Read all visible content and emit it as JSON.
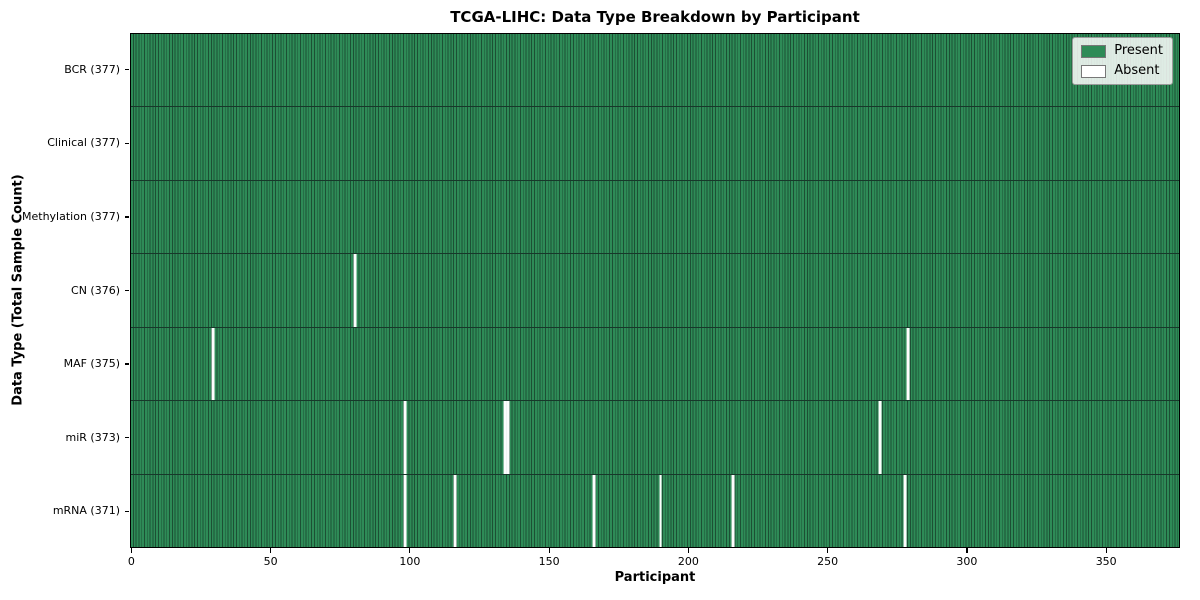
{
  "chart_data": {
    "type": "heatmap",
    "title": "TCGA-LIHC: Data Type Breakdown by Participant",
    "xlabel": "Participant",
    "ylabel": "Data Type (Total Sample Count)",
    "n_participants": 377,
    "x_ticks": [
      0,
      50,
      100,
      150,
      200,
      250,
      300,
      350
    ],
    "x_range": [
      -0.5,
      376.5
    ],
    "grid": false,
    "legend_position": "upper right",
    "colors": {
      "present": "#2e8b57",
      "present_stripe_dark": "#1c5034",
      "absent": "#ffffff",
      "row_divider": "#17382a",
      "frame": "#000000"
    },
    "legend": [
      {
        "label": "Present",
        "color": "#2e8b57"
      },
      {
        "label": "Absent",
        "color": "#ffffff"
      }
    ],
    "rows": [
      {
        "category": "BCR",
        "label": "BCR (377)",
        "total": 377,
        "absent_participants": []
      },
      {
        "category": "Clinical",
        "label": "Clinical (377)",
        "total": 377,
        "absent_participants": []
      },
      {
        "category": "Methylation",
        "label": "Methylation (377)",
        "total": 377,
        "absent_participants": []
      },
      {
        "category": "CN",
        "label": "CN (376)",
        "total": 376,
        "absent_participants": [
          80
        ]
      },
      {
        "category": "MAF",
        "label": "MAF (375)",
        "total": 375,
        "absent_participants": [
          29,
          279
        ]
      },
      {
        "category": "miR",
        "label": "miR (373)",
        "total": 373,
        "absent_participants": [
          98,
          134,
          135,
          269
        ]
      },
      {
        "category": "mRNA",
        "label": "mRNA (371)",
        "total": 371,
        "absent_participants": [
          98,
          116,
          166,
          190,
          216,
          278
        ]
      }
    ]
  }
}
